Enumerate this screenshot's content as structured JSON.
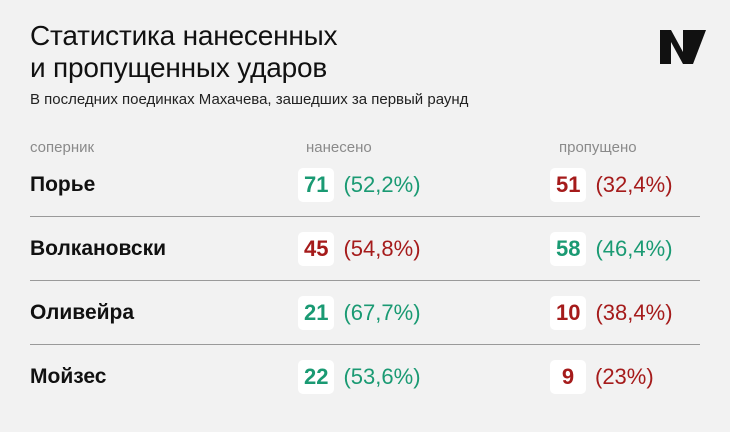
{
  "header": {
    "title_line1": "Статистика нанесенных",
    "title_line2": "и пропущенных ударов",
    "subtitle": "В последних поединках Махачева, зашедших за первый раунд",
    "logo_icon": "publisher-logo-icon"
  },
  "colors": {
    "green": "#1a9a73",
    "red": "#a51b1b",
    "logo": "#111111"
  },
  "chart_data": {
    "type": "table",
    "columns": [
      "соперник",
      "нанесено",
      "пропущено"
    ],
    "rows": [
      {
        "opponent": "Порье",
        "landed": {
          "value": "71",
          "pct": "(52,2%)",
          "color": "green"
        },
        "absorbed": {
          "value": "51",
          "pct": "(32,4%)",
          "color": "red"
        }
      },
      {
        "opponent": "Волкановски",
        "landed": {
          "value": "45",
          "pct": "(54,8%)",
          "color": "red"
        },
        "absorbed": {
          "value": "58",
          "pct": "(46,4%)",
          "color": "green"
        }
      },
      {
        "opponent": "Оливейра",
        "landed": {
          "value": "21",
          "pct": "(67,7%)",
          "color": "green"
        },
        "absorbed": {
          "value": "10",
          "pct": "(38,4%)",
          "color": "red"
        }
      },
      {
        "opponent": "Мойзес",
        "landed": {
          "value": "22",
          "pct": "(53,6%)",
          "color": "green"
        },
        "absorbed": {
          "value": "9",
          "pct": "(23%)",
          "color": "red"
        }
      }
    ]
  }
}
